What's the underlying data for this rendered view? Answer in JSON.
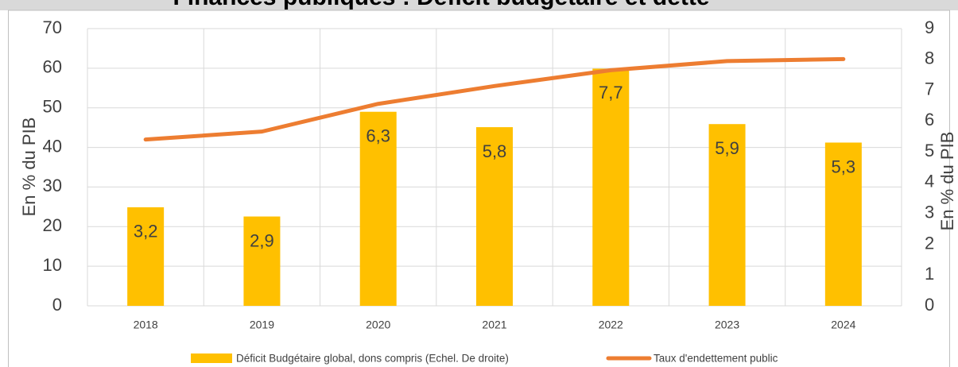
{
  "chart_data": {
    "type": "bar-line",
    "title": "Finances publiques : Déficit budgétaire et dette",
    "ylabel": "En % du PIB",
    "y2label": "En % du PIB",
    "categories": [
      "2018",
      "2019",
      "2020",
      "2021",
      "2022",
      "2023",
      "2024"
    ],
    "series": [
      {
        "name": "Déficit Budgétaire global, dons compris (Echel. De droite)",
        "type": "bar",
        "axis": "y2",
        "color": "#ffc000",
        "values": [
          3.2,
          2.9,
          6.3,
          5.8,
          7.7,
          5.9,
          5.3
        ],
        "value_labels": [
          "3,2",
          "2,9",
          "6,3",
          "5,8",
          "7,7",
          "5,9",
          "5,3"
        ]
      },
      {
        "name": "Taux d'endettement public",
        "type": "line",
        "axis": "y",
        "color": "#ed7d31",
        "values": [
          42,
          44,
          51,
          55.5,
          59.5,
          61.8,
          62.3
        ]
      }
    ],
    "ylim": [
      0,
      70
    ],
    "yticks": [
      0,
      10,
      20,
      30,
      40,
      50,
      60,
      70
    ],
    "y2lim": [
      0,
      9
    ],
    "y2ticks": [
      0,
      1,
      2,
      3,
      4,
      5,
      6,
      7,
      8,
      9
    ],
    "grid": true
  }
}
